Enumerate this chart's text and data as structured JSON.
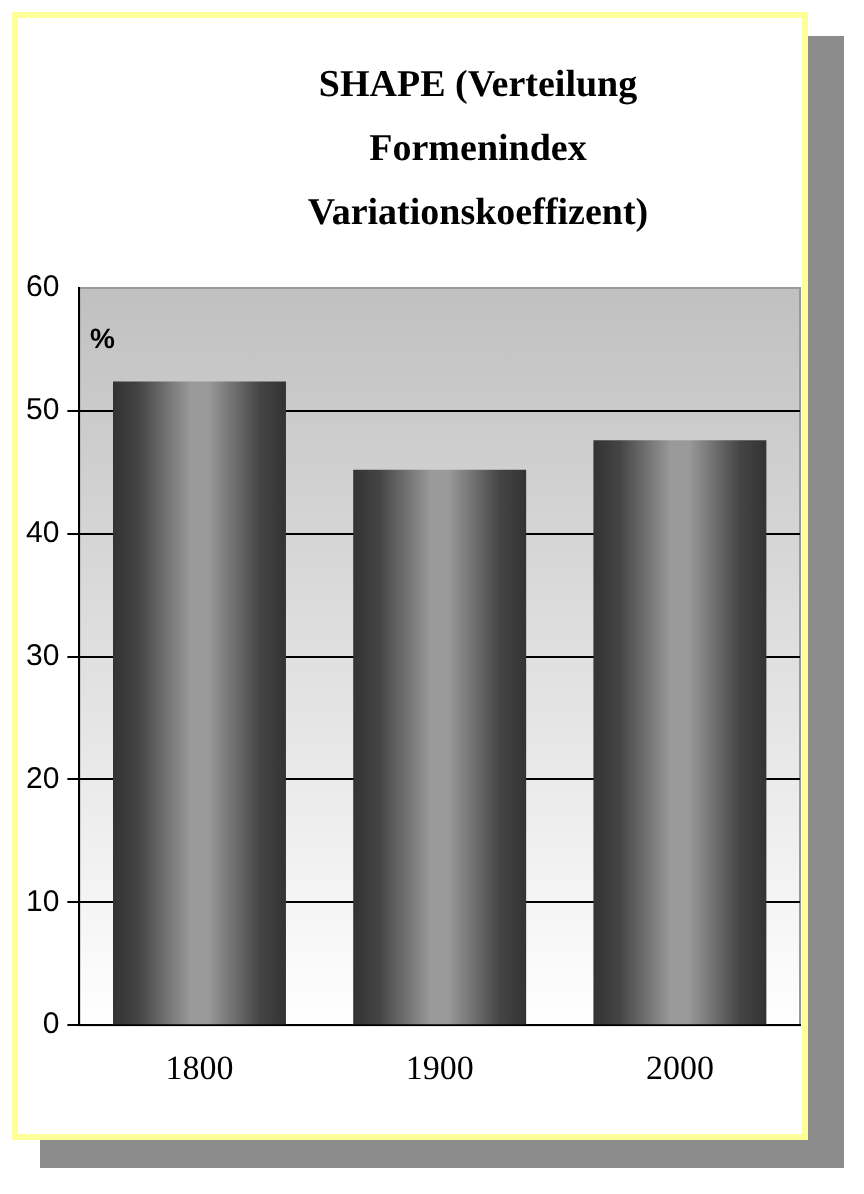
{
  "chart_data": {
    "type": "bar",
    "title": "SHAPE (Verteilung Formenindex Variationskoeffizent)",
    "ylabel": "%",
    "categories": [
      "1800",
      "1900",
      "2000"
    ],
    "values": [
      52.4,
      45.2,
      47.6
    ],
    "color": "#9a9a9a",
    "ylim": [
      0,
      60
    ],
    "yticks": [
      0,
      10,
      20,
      30,
      40,
      50,
      60
    ],
    "grid": "y",
    "legend": false
  }
}
